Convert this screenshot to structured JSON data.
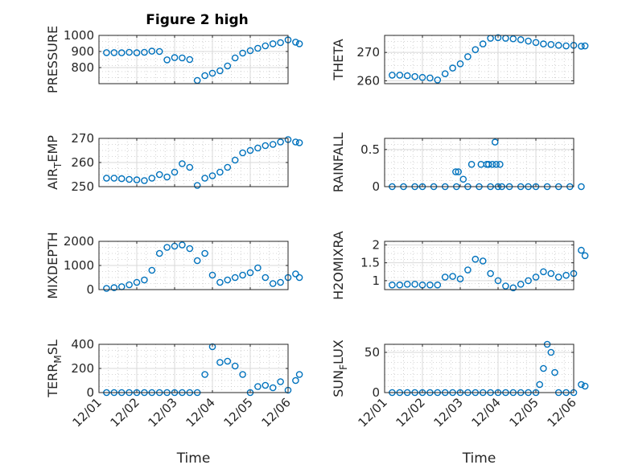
{
  "figure": {
    "title": "Figure 2 high",
    "marker_color": "#0072BD",
    "x_ticks": [
      "12/01",
      "12/02",
      "12/03",
      "12/04",
      "12/05",
      "12/06"
    ],
    "x_label": "Time"
  },
  "chart_data": [
    {
      "type": "scatter",
      "ylabel": "PRESSURE",
      "ylim": [
        700,
        1000
      ],
      "yticks": [
        800,
        900,
        1000
      ],
      "grid": "on",
      "x": [
        0.2,
        0.4,
        0.6,
        0.8,
        1.0,
        1.2,
        1.4,
        1.6,
        1.8,
        2.0,
        2.2,
        2.4,
        2.6,
        2.8,
        3.0,
        3.2,
        3.4,
        3.6,
        3.8,
        4.0,
        4.2,
        4.4,
        4.6,
        4.8,
        5.0,
        5.2,
        5.3
      ],
      "y": [
        893,
        893,
        892,
        895,
        892,
        895,
        902,
        900,
        848,
        862,
        860,
        850,
        720,
        750,
        765,
        780,
        810,
        860,
        890,
        905,
        920,
        935,
        948,
        955,
        972,
        958,
        948
      ]
    },
    {
      "type": "scatter",
      "ylabel": "THETA",
      "ylim": [
        259,
        276
      ],
      "yticks": [
        260,
        270
      ],
      "grid": "on",
      "x": [
        0.2,
        0.4,
        0.6,
        0.8,
        1.0,
        1.2,
        1.4,
        1.6,
        1.8,
        2.0,
        2.2,
        2.4,
        2.6,
        2.8,
        3.0,
        3.2,
        3.4,
        3.6,
        3.8,
        4.0,
        4.2,
        4.4,
        4.6,
        4.8,
        5.0,
        5.2,
        5.3
      ],
      "y": [
        262,
        262,
        261.8,
        261.5,
        261.2,
        261,
        260.3,
        262.5,
        264.5,
        266,
        268.5,
        271,
        273,
        275,
        275.2,
        275,
        274.8,
        274.5,
        274,
        273.5,
        273,
        272.8,
        272.5,
        272.3,
        272.5,
        272.2,
        272.3
      ]
    },
    {
      "type": "scatter",
      "ylabel": "AIR_TEMP",
      "ylim": [
        250,
        270
      ],
      "yticks": [
        250,
        260,
        270
      ],
      "grid": "on",
      "x": [
        0.2,
        0.4,
        0.6,
        0.8,
        1.0,
        1.2,
        1.4,
        1.6,
        1.8,
        2.0,
        2.2,
        2.4,
        2.6,
        2.8,
        3.0,
        3.2,
        3.4,
        3.6,
        3.8,
        4.0,
        4.2,
        4.4,
        4.6,
        4.8,
        5.0,
        5.2,
        5.3
      ],
      "y": [
        253.5,
        253.5,
        253.3,
        253,
        252.8,
        252.5,
        253.5,
        255,
        254,
        256,
        259.5,
        258,
        250.5,
        253.5,
        254.5,
        256,
        258,
        261,
        264,
        265,
        266,
        267,
        267.5,
        268.5,
        269.5,
        268.5,
        268.2
      ]
    },
    {
      "type": "scatter",
      "ylabel": "RAINFALL",
      "ylim": [
        0,
        0.65
      ],
      "yticks": [
        0,
        0.5
      ],
      "grid": "on",
      "x": [
        0.2,
        0.5,
        0.8,
        1.0,
        1.3,
        1.6,
        1.9,
        2.2,
        2.5,
        2.8,
        3.0,
        3.1,
        3.3,
        3.6,
        3.8,
        4.0,
        4.3,
        4.6,
        4.9,
        5.2,
        1.88,
        1.95,
        2.08,
        2.3,
        2.55,
        2.7,
        2.75,
        2.85,
        2.95,
        3.05,
        2.92
      ],
      "y": [
        0,
        0,
        0,
        0,
        0,
        0,
        0,
        0,
        0,
        0,
        0,
        0,
        0,
        0,
        0,
        0,
        0,
        0,
        0,
        0,
        0.2,
        0.2,
        0.1,
        0.3,
        0.3,
        0.3,
        0.3,
        0.3,
        0.3,
        0.3,
        0.6
      ]
    },
    {
      "type": "scatter",
      "ylabel": "MIXDEPTH",
      "ylim": [
        0,
        2000
      ],
      "yticks": [
        0,
        1000,
        2000
      ],
      "grid": "on",
      "x": [
        0.2,
        0.4,
        0.6,
        0.8,
        1.0,
        1.2,
        1.4,
        1.6,
        1.8,
        2.0,
        2.2,
        2.4,
        2.6,
        2.8,
        3.0,
        3.2,
        3.4,
        3.6,
        3.8,
        4.0,
        4.2,
        4.4,
        4.6,
        4.8,
        5.0,
        5.2,
        5.3
      ],
      "y": [
        50,
        80,
        120,
        200,
        300,
        400,
        800,
        1500,
        1750,
        1800,
        1850,
        1700,
        1200,
        1500,
        600,
        300,
        400,
        500,
        600,
        700,
        900,
        500,
        250,
        300,
        500,
        650,
        500
      ]
    },
    {
      "type": "scatter",
      "ylabel": "H2OMIXRA",
      "ylim": [
        0.75,
        2.1
      ],
      "yticks": [
        1,
        1.5,
        2
      ],
      "grid": "on",
      "x": [
        0.2,
        0.4,
        0.6,
        0.8,
        1.0,
        1.2,
        1.4,
        1.6,
        1.8,
        2.0,
        2.2,
        2.4,
        2.6,
        2.8,
        3.0,
        3.2,
        3.4,
        3.6,
        3.8,
        4.0,
        4.2,
        4.4,
        4.6,
        4.8,
        5.0,
        5.2,
        5.3
      ],
      "y": [
        0.88,
        0.88,
        0.9,
        0.9,
        0.88,
        0.88,
        0.88,
        1.1,
        1.12,
        1.05,
        1.3,
        1.6,
        1.55,
        1.2,
        1.0,
        0.85,
        0.8,
        0.9,
        1.0,
        1.1,
        1.25,
        1.2,
        1.1,
        1.15,
        1.2,
        1.85,
        1.7
      ]
    },
    {
      "type": "scatter",
      "ylabel": "TERR_MSL",
      "ylim": [
        0,
        400
      ],
      "yticks": [
        0,
        200,
        400
      ],
      "grid": "on",
      "x": [
        0.2,
        0.4,
        0.6,
        0.8,
        1.0,
        1.2,
        1.4,
        1.6,
        1.8,
        2.0,
        2.2,
        2.4,
        2.6,
        2.8,
        3.0,
        3.2,
        3.4,
        3.6,
        3.8,
        4.0,
        4.2,
        4.4,
        4.6,
        4.8,
        5.0,
        5.2,
        5.3
      ],
      "y": [
        0,
        0,
        0,
        0,
        0,
        0,
        0,
        0,
        0,
        0,
        0,
        0,
        0,
        150,
        380,
        250,
        260,
        220,
        150,
        0,
        50,
        60,
        40,
        90,
        20,
        100,
        150
      ]
    },
    {
      "type": "scatter",
      "ylabel": "SUN_FLUX",
      "ylim": [
        0,
        60
      ],
      "yticks": [
        0,
        50
      ],
      "grid": "on",
      "x": [
        0.2,
        0.4,
        0.6,
        0.8,
        1.0,
        1.2,
        1.4,
        1.6,
        1.8,
        2.0,
        2.2,
        2.4,
        2.6,
        2.8,
        3.0,
        3.2,
        3.4,
        3.6,
        3.8,
        4.0,
        4.1,
        4.2,
        4.3,
        4.4,
        4.5,
        4.6,
        4.8,
        5.0,
        5.2,
        5.3
      ],
      "y": [
        0,
        0,
        0,
        0,
        0,
        0,
        0,
        0,
        0,
        0,
        0,
        0,
        0,
        0,
        0,
        0,
        0,
        0,
        0,
        0,
        10,
        30,
        60,
        50,
        25,
        0,
        0,
        0,
        10,
        8
      ]
    }
  ]
}
